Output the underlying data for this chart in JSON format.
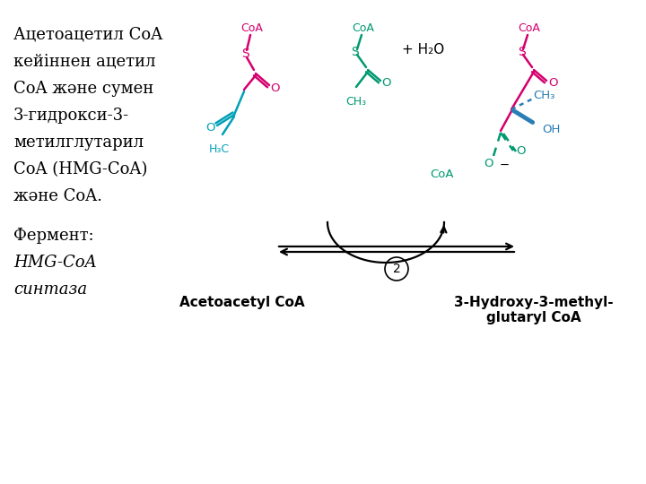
{
  "bg_color": "#ffffff",
  "text_left_lines": [
    "Ацетоацетил CoA",
    "кейіннен ацетил",
    "CoA және сумен",
    "3-гидрокси-3-",
    "метилглутарил",
    "CoA (HMG-CoA)",
    "және CoA."
  ],
  "text_enzyme_label": "Фермент:",
  "text_enzyme_name": "HMG-CoA",
  "text_enzyme_name2": "синтаза",
  "label_acetoacetyl": "Acetoacetyl CoA",
  "label_hmgcoa": "3-Hydroxy-3-methyl-\nglutaryl CoA",
  "color_pink": "#d4006e",
  "color_green": "#009970",
  "color_cyan": "#00a0b8",
  "color_black": "#000000",
  "color_blue": "#2a7db5",
  "arrow_color": "#000000"
}
